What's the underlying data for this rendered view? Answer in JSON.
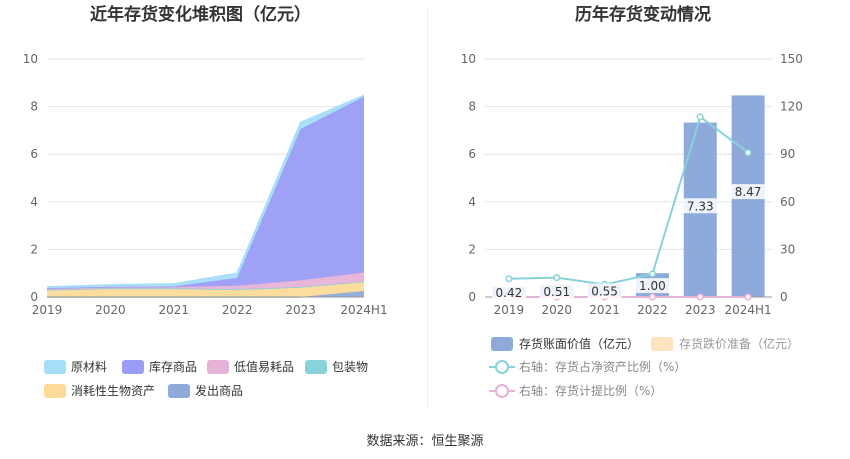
{
  "chart_data": [
    {
      "type": "area",
      "title": "近年存货变化堆积图（亿元）",
      "categories": [
        "2019",
        "2020",
        "2021",
        "2022",
        "2023",
        "2024H1"
      ],
      "ylim": [
        0,
        10
      ],
      "yticks": [
        0,
        2,
        4,
        6,
        8,
        10
      ],
      "stacked": true,
      "grid": true,
      "legend_position": "bottom",
      "series": [
        {
          "name": "发出商品",
          "color": "#8eaadb",
          "values": [
            0.0,
            0.0,
            0.0,
            0.0,
            0.0,
            0.25
          ]
        },
        {
          "name": "消耗性生物资产",
          "color": "#fcdb99",
          "values": [
            0.3,
            0.36,
            0.36,
            0.32,
            0.42,
            0.4
          ]
        },
        {
          "name": "包装物",
          "color": "#86d3da",
          "values": [
            0.0,
            0.0,
            0.0,
            0.0,
            0.0,
            0.0
          ]
        },
        {
          "name": "低值易耗品",
          "color": "#e6b3d8",
          "values": [
            0.05,
            0.05,
            0.06,
            0.16,
            0.28,
            0.38
          ]
        },
        {
          "name": "库存商品",
          "color": "#9a9cf7",
          "values": [
            0.02,
            0.02,
            0.02,
            0.32,
            6.35,
            7.38
          ]
        },
        {
          "name": "原材料",
          "color": "#a5def7",
          "values": [
            0.05,
            0.08,
            0.11,
            0.2,
            0.28,
            0.06
          ]
        }
      ],
      "legend_order": [
        "原材料",
        "库存商品",
        "低值易耗品",
        "包装物",
        "消耗性生物资产",
        "发出商品"
      ]
    },
    {
      "type": "bar",
      "title": "历年存货变动情况",
      "categories": [
        "2019",
        "2020",
        "2021",
        "2022",
        "2023",
        "2024H1"
      ],
      "ylim": [
        0,
        10
      ],
      "yticks": [
        0,
        2,
        4,
        6,
        8,
        10
      ],
      "y2lim": [
        0,
        150
      ],
      "y2ticks": [
        0,
        30,
        60,
        90,
        120,
        150
      ],
      "grid": true,
      "legend_position": "bottom",
      "bars": [
        {
          "name": "存货账面价值（亿元）",
          "color": "#8eaadb",
          "values": [
            0.42,
            0.51,
            0.55,
            1.0,
            7.33,
            8.47
          ],
          "labels": [
            "0.42",
            "0.51",
            "0.55",
            "1.00",
            "7.33",
            "8.47"
          ]
        },
        {
          "name": "存货跌价准备（亿元）",
          "color": "#fde5c2",
          "values": [
            0,
            0,
            0,
            0,
            0,
            0
          ]
        }
      ],
      "lines": [
        {
          "name": "右轴：存货占净资产比例（%）",
          "color": "#86d3da",
          "axis": "right",
          "values": [
            11.5,
            12.2,
            7.9,
            14.5,
            113.5,
            91.0
          ]
        },
        {
          "name": "右轴：存货计提比例（%）",
          "color": "#e6b3d8",
          "axis": "right",
          "values": [
            0,
            0,
            0,
            0,
            0,
            0
          ]
        }
      ]
    }
  ],
  "footer": "数据来源：恒生聚源"
}
